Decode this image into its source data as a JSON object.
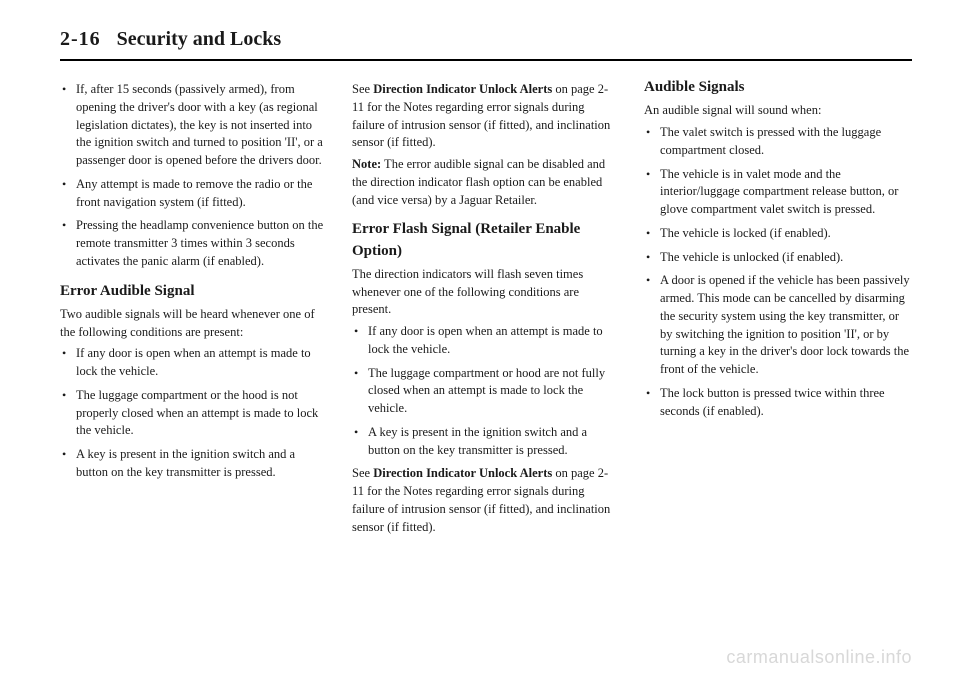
{
  "header": {
    "page_number": "2-16",
    "title": "Security and Locks"
  },
  "col1": {
    "bullets_top": [
      "If, after 15 seconds (passively armed), from opening the driver's door with a key (as regional legislation dictates), the key is not inserted into the ignition switch and turned to position 'II', or a passenger door is opened before the drivers door.",
      "Any attempt is made to remove the radio or the front navigation system (if fitted).",
      "Pressing the headlamp convenience button on the remote transmitter 3 times within 3 seconds activates the panic alarm (if enabled)."
    ],
    "heading1": "Error Audible Signal",
    "para1": "Two audible signals will be heard whenever one of the following conditions are present:",
    "bullets_bottom": [
      "If any door is open when an attempt is made to lock the vehicle.",
      "The luggage compartment or the hood is not properly closed when an attempt is made to lock the vehicle.",
      "A key is present in the ignition switch and a button on the key transmitter is pressed."
    ]
  },
  "col2": {
    "para1_pre": "See ",
    "para1_bold": "Direction Indicator Unlock Alerts",
    "para1_post": " on page 2-11 for the Notes regarding error signals during failure of intrusion sensor (if fitted), and inclination sensor (if fitted).",
    "note_label": "Note:",
    "note_text": "  The error audible signal can be disabled and the direction indicator flash option can be enabled (and vice versa) by a Jaguar Retailer.",
    "heading1": "Error Flash Signal (Retailer Enable Option)",
    "para2": "The direction indicators will flash seven times whenever one of the following conditions are present.",
    "bullets": [
      "If any door is open when an attempt is made to lock the vehicle.",
      "The luggage compartment or hood are not fully closed when an attempt is made to lock the vehicle.",
      "A key is present in the ignition switch and a button on the key transmitter is pressed."
    ],
    "para3_pre": "See ",
    "para3_bold": "Direction Indicator Unlock Alerts",
    "para3_post": " on page 2-11 for the Notes regarding error signals during failure of intrusion sensor (if fitted), and inclination sensor (if fitted)."
  },
  "col3": {
    "heading1": "Audible Signals",
    "para1": "An audible signal will sound when:",
    "bullets": [
      "The valet switch is pressed with the luggage compartment closed.",
      "The vehicle is in valet mode and the interior/luggage compartment release button, or glove compartment valet switch is pressed.",
      "The vehicle is locked (if enabled).",
      "The vehicle is unlocked (if enabled).",
      "A door is opened if the vehicle has been passively armed. This mode can be cancelled by disarming the security system using the key transmitter, or by switching the ignition to position 'II', or by turning a key in the driver's door lock towards the front of the vehicle.",
      "The lock button is pressed twice within three seconds (if enabled)."
    ]
  },
  "watermark": "carmanualsonline.info"
}
